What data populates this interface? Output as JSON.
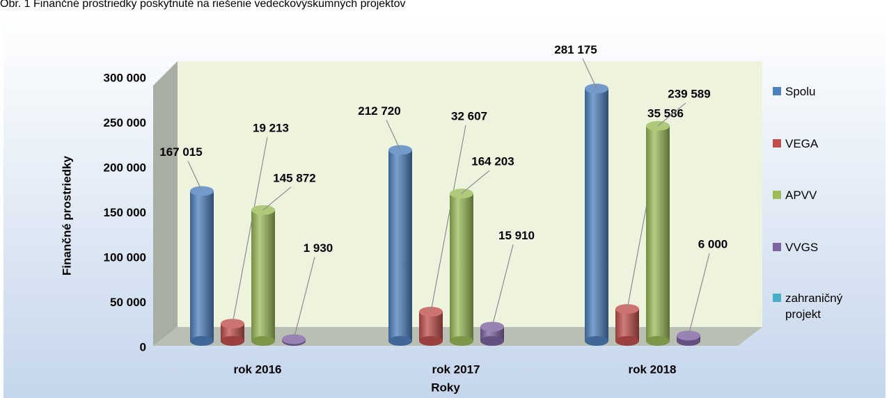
{
  "chart_data": {
    "type": "bar",
    "title": "Obr. 1 Finančné prostriedky poskytnuté na riešenie vedeckovýskumných projektov",
    "x_label": "Roky",
    "y_label": "Finančné prostriedky",
    "categories": [
      "rok 2016",
      "rok 2017",
      "rok 2018"
    ],
    "series": [
      {
        "name": "Spolu",
        "color": "#4f81bd",
        "values": [
          167015,
          212720,
          281175
        ],
        "value_labels": [
          "167 015",
          "212 720",
          "281 175"
        ]
      },
      {
        "name": "VEGA",
        "color": "#c0504d",
        "values": [
          19213,
          32607,
          35586
        ],
        "value_labels": [
          "19 213",
          "32 607",
          "35 586"
        ]
      },
      {
        "name": "APVV",
        "color": "#9bbb59",
        "values": [
          145872,
          164203,
          239589
        ],
        "value_labels": [
          "145 872",
          "164 203",
          "239 589"
        ]
      },
      {
        "name": "VVGS",
        "color": "#8064a2",
        "values": [
          1930,
          15910,
          6000
        ],
        "value_labels": [
          "1 930",
          "15 910",
          "6 000"
        ]
      },
      {
        "name": "zahraničný projekt",
        "color": "#4bacc6",
        "values": [
          null,
          null,
          null
        ]
      }
    ],
    "ylim": [
      0,
      300000
    ],
    "yticks": [
      {
        "value": 0,
        "label": "0"
      },
      {
        "value": 50000,
        "label": "50 000"
      },
      {
        "value": 100000,
        "label": "100 000"
      },
      {
        "value": 150000,
        "label": "150 000"
      },
      {
        "value": 200000,
        "label": "200 000"
      },
      {
        "value": 250000,
        "label": "250 000"
      },
      {
        "value": 300000,
        "label": "300 000"
      }
    ],
    "grid": false,
    "legend": "right"
  }
}
